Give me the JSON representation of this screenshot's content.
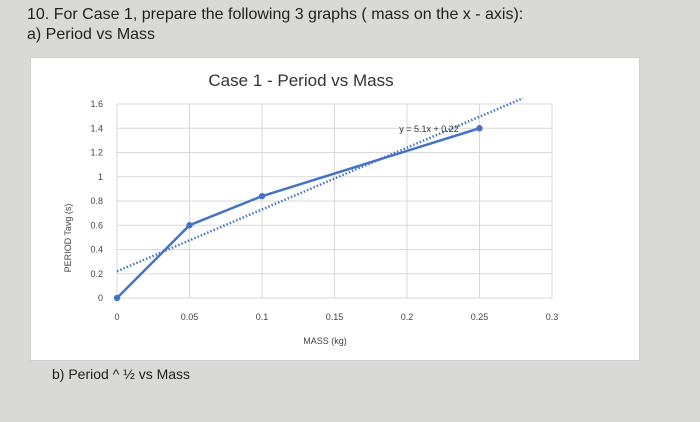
{
  "question": {
    "line1": "10. For Case 1, prepare the following 3 graphs ( mass on the x - axis):",
    "line2": "a) Period vs Mass"
  },
  "part_b": "b) Period ^ ½ vs Mass",
  "chart_data": {
    "type": "scatter",
    "title": "Case 1 - Period vs Mass",
    "xlabel": "MASS (kg)",
    "ylabel": "PERIOD Tavg (s)",
    "xlim": [
      0,
      0.3
    ],
    "ylim": [
      0,
      1.6
    ],
    "x_ticks": [
      0,
      0.05,
      0.1,
      0.15,
      0.2,
      0.25,
      0.3
    ],
    "x_tick_labels": [
      "0",
      "0.05",
      "0.1",
      "0.15",
      "0.2",
      "0.25",
      "0.3"
    ],
    "y_ticks": [
      0,
      0.2,
      0.4,
      0.6,
      0.8,
      1,
      1.2,
      1.4,
      1.6
    ],
    "y_tick_labels": [
      "0",
      "0.2",
      "0.4",
      "0.6",
      "0.8",
      "1",
      "1.2",
      "1.4",
      "1.6"
    ],
    "grid": true,
    "series": [
      {
        "x": [
          0,
          0.05,
          0.1,
          0.25
        ],
        "y": [
          0,
          0.6,
          0.84,
          1.4
        ],
        "color": "#4472c4",
        "style": "line-with-markers"
      }
    ],
    "trendline": {
      "slope": 5.1,
      "intercept": 0.22,
      "equation": "y = 5.1x + 0.22",
      "color": "#4472c4",
      "style": "dotted"
    }
  }
}
